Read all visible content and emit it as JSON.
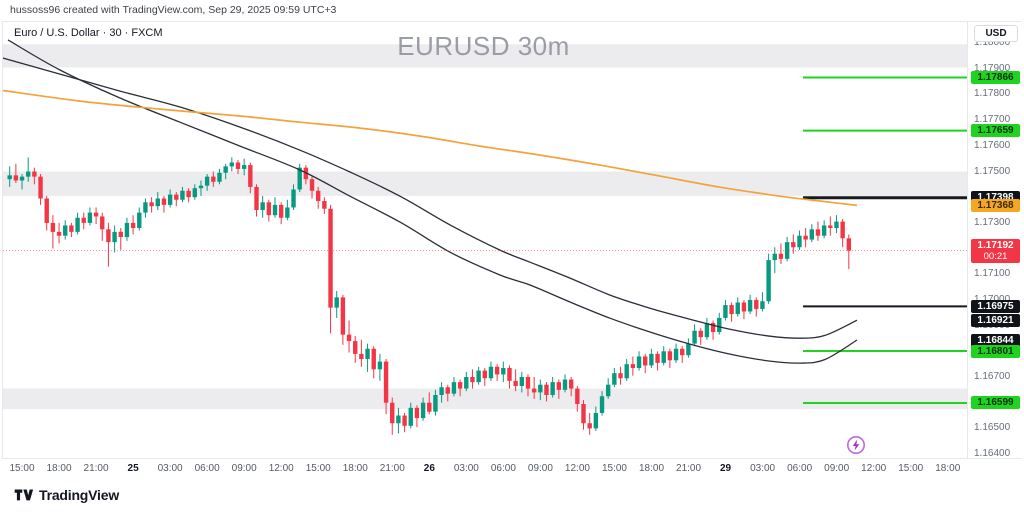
{
  "attribution": "hussoss96 created with TradingView.com, Sep 29, 2025 09:59 UTC+3",
  "symbol_line": "Euro / U.S. Dollar · 30 · FXCM",
  "watermark": "EURUSD 30m",
  "footer": {
    "logo_text": "TradingView"
  },
  "price_scale": {
    "currency_label": "USD",
    "ticks": [
      "1.18000",
      "1.17900",
      "1.17800",
      "1.17700",
      "1.17600",
      "1.17500",
      "1.17300",
      "1.17100",
      "1.17000",
      "1.16900",
      "1.16700",
      "1.16500",
      "1.16400"
    ],
    "badges": [
      {
        "text": "1.17866",
        "type": "green"
      },
      {
        "text": "1.17659",
        "type": "green"
      },
      {
        "text": "1.17398",
        "type": "black"
      },
      {
        "text": "1.17368",
        "type": "orange"
      },
      {
        "text": "1.17192",
        "type": "red",
        "countdown": "00:21"
      },
      {
        "text": "1.16975",
        "type": "black"
      },
      {
        "text": "1.16921",
        "type": "black"
      },
      {
        "text": "1.16844",
        "type": "black"
      },
      {
        "text": "1.16801",
        "type": "green"
      },
      {
        "text": "1.16599",
        "type": "green"
      }
    ]
  },
  "time_scale": {
    "labels": [
      {
        "t": "15:00",
        "major": false
      },
      {
        "t": "18:00",
        "major": false
      },
      {
        "t": "21:00",
        "major": false
      },
      {
        "t": "25",
        "major": true
      },
      {
        "t": "03:00",
        "major": false
      },
      {
        "t": "06:00",
        "major": false
      },
      {
        "t": "09:00",
        "major": false
      },
      {
        "t": "12:00",
        "major": false
      },
      {
        "t": "15:00",
        "major": false
      },
      {
        "t": "18:00",
        "major": false
      },
      {
        "t": "21:00",
        "major": false
      },
      {
        "t": "26",
        "major": true
      },
      {
        "t": "03:00",
        "major": false
      },
      {
        "t": "06:00",
        "major": false
      },
      {
        "t": "09:00",
        "major": false
      },
      {
        "t": "12:00",
        "major": false
      },
      {
        "t": "15:00",
        "major": false
      },
      {
        "t": "18:00",
        "major": false
      },
      {
        "t": "21:00",
        "major": false
      },
      {
        "t": "29",
        "major": true
      },
      {
        "t": "03:00",
        "major": false
      },
      {
        "t": "06:00",
        "major": false
      },
      {
        "t": "09:00",
        "major": false
      },
      {
        "t": "12:00",
        "major": false
      },
      {
        "t": "15:00",
        "major": false
      },
      {
        "t": "18:00",
        "major": false
      }
    ]
  },
  "colors": {
    "candle_up": "#089981",
    "candle_down": "#f23645",
    "sma_orange": "#f2a33c",
    "ma_black": "#2a2e39",
    "ray_green": "#1fd41f",
    "ray_black": "#16191f",
    "zone_fill": "rgba(149,152,161,0.18)",
    "last_price": "#f23645",
    "flash_purple": "#a832c4"
  },
  "chart_data": {
    "type": "candlestick",
    "symbol": "EURUSD",
    "timeframe": "30m",
    "exchange": "FXCM",
    "y_axis": {
      "visible_min": 1.16385,
      "visible_max": 1.18082,
      "tick_step": 0.001
    },
    "last_price": 1.17192,
    "zones": [
      {
        "top": 1.17995,
        "bottom": 1.17905
      },
      {
        "top": 1.175,
        "bottom": 1.17405
      },
      {
        "top": 1.16655,
        "bottom": 1.16575
      }
    ],
    "hlines": [
      {
        "price": 1.17866,
        "color": "green",
        "width": 2
      },
      {
        "price": 1.17659,
        "color": "green",
        "width": 2
      },
      {
        "price": 1.17398,
        "color": "black",
        "width": 3
      },
      {
        "price": 1.16975,
        "color": "black",
        "width": 2
      },
      {
        "price": 1.16801,
        "color": "green",
        "width": 2
      },
      {
        "price": 1.16599,
        "color": "green",
        "width": 2
      }
    ],
    "overlays": {
      "sma_orange": [
        [
          0,
          1.17817
        ],
        [
          80,
          1.17774
        ],
        [
          160,
          1.17743
        ],
        [
          240,
          1.17716
        ],
        [
          300,
          1.17692
        ],
        [
          360,
          1.17669
        ],
        [
          420,
          1.17638
        ],
        [
          480,
          1.17599
        ],
        [
          540,
          1.17564
        ],
        [
          600,
          1.17525
        ],
        [
          660,
          1.17482
        ],
        [
          720,
          1.17439
        ],
        [
          780,
          1.17404
        ],
        [
          820,
          1.17385
        ],
        [
          857,
          1.17368
        ]
      ],
      "ma_black_1": [
        [
          0,
          1.17945
        ],
        [
          60,
          1.17879
        ],
        [
          120,
          1.17813
        ],
        [
          180,
          1.17751
        ],
        [
          240,
          1.17673
        ],
        [
          300,
          1.17583
        ],
        [
          350,
          1.17498
        ],
        [
          400,
          1.17404
        ],
        [
          450,
          1.17292
        ],
        [
          500,
          1.17194
        ],
        [
          530,
          1.17147
        ],
        [
          570,
          1.17085
        ],
        [
          610,
          1.17019
        ],
        [
          650,
          1.16968
        ],
        [
          690,
          1.16925
        ],
        [
          730,
          1.16886
        ],
        [
          770,
          1.16859
        ],
        [
          800,
          1.16851
        ],
        [
          825,
          1.16862
        ],
        [
          857,
          1.16921
        ]
      ],
      "ma_black_2": [
        [
          8,
          1.18012
        ],
        [
          60,
          1.17895
        ],
        [
          120,
          1.17786
        ],
        [
          180,
          1.17692
        ],
        [
          240,
          1.17599
        ],
        [
          300,
          1.17506
        ],
        [
          350,
          1.17404
        ],
        [
          400,
          1.17303
        ],
        [
          450,
          1.17186
        ],
        [
          500,
          1.17097
        ],
        [
          530,
          1.17058
        ],
        [
          570,
          1.16992
        ],
        [
          610,
          1.16929
        ],
        [
          650,
          1.16875
        ],
        [
          690,
          1.16828
        ],
        [
          730,
          1.16789
        ],
        [
          770,
          1.16762
        ],
        [
          800,
          1.16754
        ],
        [
          825,
          1.16768
        ],
        [
          857,
          1.16844
        ]
      ]
    },
    "candles": [
      [
        1.1747,
        1.1752,
        1.1744,
        1.17485
      ],
      [
        1.17485,
        1.1753,
        1.17455,
        1.17465
      ],
      [
        1.17465,
        1.1749,
        1.1743,
        1.1748
      ],
      [
        1.1748,
        1.17555,
        1.1746,
        1.175
      ],
      [
        1.175,
        1.17515,
        1.1745,
        1.1748
      ],
      [
        1.1748,
        1.1749,
        1.1737,
        1.17395
      ],
      [
        1.17395,
        1.17405,
        1.1727,
        1.173
      ],
      [
        1.173,
        1.1733,
        1.172,
        1.17265
      ],
      [
        1.17265,
        1.173,
        1.1722,
        1.1725
      ],
      [
        1.1725,
        1.1731,
        1.17235,
        1.1729
      ],
      [
        1.1729,
        1.173,
        1.17245,
        1.17265
      ],
      [
        1.17265,
        1.1734,
        1.17255,
        1.1732
      ],
      [
        1.1732,
        1.1734,
        1.17275,
        1.173
      ],
      [
        1.173,
        1.1736,
        1.1729,
        1.1734
      ],
      [
        1.1734,
        1.1736,
        1.17295,
        1.17325
      ],
      [
        1.17325,
        1.1734,
        1.1723,
        1.17275
      ],
      [
        1.17275,
        1.173,
        1.1713,
        1.17225
      ],
      [
        1.17225,
        1.1729,
        1.17185,
        1.17265
      ],
      [
        1.17265,
        1.1728,
        1.17195,
        1.17245
      ],
      [
        1.17245,
        1.1732,
        1.1723,
        1.173
      ],
      [
        1.173,
        1.1733,
        1.17255,
        1.1728
      ],
      [
        1.1728,
        1.1736,
        1.1727,
        1.1734
      ],
      [
        1.1734,
        1.17395,
        1.1732,
        1.1738
      ],
      [
        1.1738,
        1.174,
        1.1734,
        1.17365
      ],
      [
        1.17365,
        1.1742,
        1.1735,
        1.17395
      ],
      [
        1.17395,
        1.17405,
        1.1734,
        1.1737
      ],
      [
        1.1737,
        1.1743,
        1.1736,
        1.1741
      ],
      [
        1.1741,
        1.1742,
        1.17365,
        1.1739
      ],
      [
        1.1739,
        1.1744,
        1.1738,
        1.17425
      ],
      [
        1.17425,
        1.17435,
        1.1738,
        1.174
      ],
      [
        1.174,
        1.1745,
        1.1739,
        1.17435
      ],
      [
        1.17435,
        1.17465,
        1.17405,
        1.17445
      ],
      [
        1.17445,
        1.1749,
        1.17425,
        1.1748
      ],
      [
        1.1748,
        1.175,
        1.1744,
        1.1746
      ],
      [
        1.1746,
        1.1751,
        1.1745,
        1.17495
      ],
      [
        1.17495,
        1.1753,
        1.1747,
        1.1752
      ],
      [
        1.1752,
        1.17555,
        1.175,
        1.17535
      ],
      [
        1.17535,
        1.17545,
        1.1749,
        1.1751
      ],
      [
        1.1751,
        1.1755,
        1.17485,
        1.17525
      ],
      [
        1.17525,
        1.17535,
        1.17415,
        1.1744
      ],
      [
        1.1744,
        1.1745,
        1.17325,
        1.1735
      ],
      [
        1.1735,
        1.17405,
        1.1732,
        1.1738
      ],
      [
        1.1738,
        1.1739,
        1.17305,
        1.1733
      ],
      [
        1.1733,
        1.174,
        1.1732,
        1.1737
      ],
      [
        1.1737,
        1.1738,
        1.17295,
        1.1732
      ],
      [
        1.1732,
        1.1739,
        1.1731,
        1.1736
      ],
      [
        1.1736,
        1.1745,
        1.1735,
        1.1743
      ],
      [
        1.1743,
        1.1753,
        1.1742,
        1.17515
      ],
      [
        1.17515,
        1.17525,
        1.1745,
        1.1747
      ],
      [
        1.1747,
        1.1748,
        1.17395,
        1.17425
      ],
      [
        1.17425,
        1.1744,
        1.17355,
        1.17385
      ],
      [
        1.17385,
        1.174,
        1.17335,
        1.17355
      ],
      [
        1.17355,
        1.1737,
        1.1687,
        1.1697
      ],
      [
        1.1697,
        1.17035,
        1.1693,
        1.1701
      ],
      [
        1.1701,
        1.1702,
        1.16825,
        1.16865
      ],
      [
        1.16865,
        1.1692,
        1.16795,
        1.1684
      ],
      [
        1.1684,
        1.1686,
        1.16755,
        1.1679
      ],
      [
        1.1679,
        1.16845,
        1.1674,
        1.1677
      ],
      [
        1.1677,
        1.1683,
        1.1672,
        1.1681
      ],
      [
        1.1681,
        1.1682,
        1.16695,
        1.1673
      ],
      [
        1.1673,
        1.1679,
        1.16685,
        1.1676
      ],
      [
        1.1676,
        1.1677,
        1.16555,
        1.166
      ],
      [
        1.166,
        1.1662,
        1.16475,
        1.1652
      ],
      [
        1.1652,
        1.1658,
        1.1648,
        1.1655
      ],
      [
        1.1655,
        1.1656,
        1.16485,
        1.1651
      ],
      [
        1.1651,
        1.166,
        1.165,
        1.1658
      ],
      [
        1.1658,
        1.1659,
        1.16505,
        1.1654
      ],
      [
        1.1654,
        1.1662,
        1.1653,
        1.166
      ],
      [
        1.166,
        1.1664,
        1.16555,
        1.16565
      ],
      [
        1.16565,
        1.1665,
        1.1655,
        1.1663
      ],
      [
        1.1663,
        1.1668,
        1.166,
        1.1666
      ],
      [
        1.1666,
        1.1667,
        1.16605,
        1.16635
      ],
      [
        1.16635,
        1.167,
        1.16625,
        1.1668
      ],
      [
        1.1668,
        1.1669,
        1.16625,
        1.16655
      ],
      [
        1.16655,
        1.1672,
        1.16645,
        1.167
      ],
      [
        1.167,
        1.1673,
        1.16655,
        1.1668
      ],
      [
        1.1668,
        1.1674,
        1.1667,
        1.16725
      ],
      [
        1.16725,
        1.16735,
        1.16665,
        1.16695
      ],
      [
        1.16695,
        1.1676,
        1.16685,
        1.1674
      ],
      [
        1.1674,
        1.1675,
        1.16685,
        1.1671
      ],
      [
        1.1671,
        1.1676,
        1.1668,
        1.16735
      ],
      [
        1.16735,
        1.16745,
        1.16655,
        1.16685
      ],
      [
        1.16685,
        1.1673,
        1.16645,
        1.16665
      ],
      [
        1.16665,
        1.1672,
        1.1664,
        1.167
      ],
      [
        1.167,
        1.1671,
        1.16625,
        1.16655
      ],
      [
        1.16655,
        1.167,
        1.16615,
        1.1664
      ],
      [
        1.1664,
        1.1669,
        1.1661,
        1.1667
      ],
      [
        1.1667,
        1.1668,
        1.16605,
        1.1663
      ],
      [
        1.1663,
        1.167,
        1.1662,
        1.1668
      ],
      [
        1.1668,
        1.1669,
        1.16615,
        1.1665
      ],
      [
        1.1665,
        1.1671,
        1.1664,
        1.1669
      ],
      [
        1.1669,
        1.167,
        1.16625,
        1.16655
      ],
      [
        1.16655,
        1.16665,
        1.16565,
        1.16595
      ],
      [
        1.16595,
        1.1661,
        1.16495,
        1.1652
      ],
      [
        1.1652,
        1.1656,
        1.16475,
        1.165
      ],
      [
        1.165,
        1.16585,
        1.1649,
        1.1656
      ],
      [
        1.1656,
        1.16645,
        1.1655,
        1.16625
      ],
      [
        1.16625,
        1.16695,
        1.16615,
        1.1667
      ],
      [
        1.1667,
        1.16735,
        1.1666,
        1.16715
      ],
      [
        1.16715,
        1.1674,
        1.1667,
        1.16695
      ],
      [
        1.16695,
        1.1677,
        1.16685,
        1.1675
      ],
      [
        1.1675,
        1.1678,
        1.16705,
        1.16735
      ],
      [
        1.16735,
        1.168,
        1.16725,
        1.1678
      ],
      [
        1.1678,
        1.1679,
        1.16715,
        1.16745
      ],
      [
        1.16745,
        1.1681,
        1.16735,
        1.1679
      ],
      [
        1.1679,
        1.168,
        1.16725,
        1.16755
      ],
      [
        1.16755,
        1.1682,
        1.16745,
        1.168
      ],
      [
        1.168,
        1.1681,
        1.16735,
        1.16765
      ],
      [
        1.16765,
        1.1683,
        1.16755,
        1.1681
      ],
      [
        1.1681,
        1.1682,
        1.16755,
        1.16785
      ],
      [
        1.16785,
        1.1685,
        1.16775,
        1.1683
      ],
      [
        1.1683,
        1.16905,
        1.1682,
        1.1688
      ],
      [
        1.1688,
        1.1689,
        1.16825,
        1.16855
      ],
      [
        1.16855,
        1.1693,
        1.16845,
        1.1691
      ],
      [
        1.1691,
        1.1692,
        1.16845,
        1.16875
      ],
      [
        1.16875,
        1.1695,
        1.16865,
        1.1693
      ],
      [
        1.1693,
        1.17,
        1.1692,
        1.1698
      ],
      [
        1.1698,
        1.1699,
        1.16915,
        1.16945
      ],
      [
        1.16945,
        1.1701,
        1.16935,
        1.1699
      ],
      [
        1.1699,
        1.17,
        1.16925,
        1.16955
      ],
      [
        1.16955,
        1.1702,
        1.16945,
        1.17
      ],
      [
        1.17,
        1.1701,
        1.16935,
        1.16965
      ],
      [
        1.16965,
        1.1703,
        1.16955,
        1.16995
      ],
      [
        1.16995,
        1.1718,
        1.16985,
        1.17155
      ],
      [
        1.17155,
        1.17205,
        1.17105,
        1.1718
      ],
      [
        1.1718,
        1.1722,
        1.1714,
        1.1716
      ],
      [
        1.1716,
        1.17245,
        1.1715,
        1.17225
      ],
      [
        1.17225,
        1.17255,
        1.1718,
        1.17205
      ],
      [
        1.17205,
        1.1727,
        1.17195,
        1.1725
      ],
      [
        1.1725,
        1.1728,
        1.17205,
        1.17235
      ],
      [
        1.17235,
        1.17295,
        1.17225,
        1.17275
      ],
      [
        1.17275,
        1.17305,
        1.1723,
        1.1725
      ],
      [
        1.1725,
        1.1731,
        1.1724,
        1.1729
      ],
      [
        1.1729,
        1.17325,
        1.1725,
        1.1728
      ],
      [
        1.1728,
        1.1733,
        1.1726,
        1.17305
      ],
      [
        1.17305,
        1.17315,
        1.17205,
        1.1724
      ],
      [
        1.1724,
        1.17255,
        1.1712,
        1.17192
      ]
    ]
  }
}
